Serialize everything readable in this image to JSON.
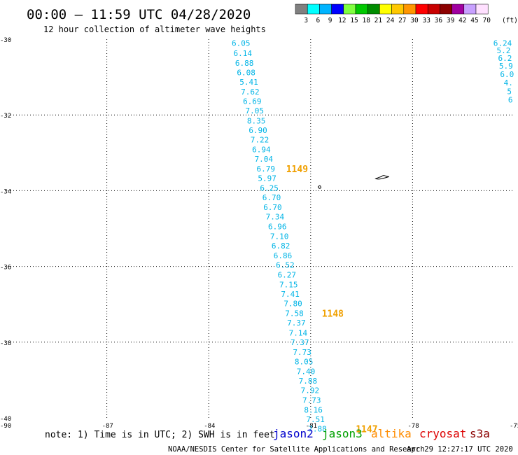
{
  "header": {
    "title": "00:00 – 11:59 UTC 04/28/2020",
    "subtitle": "12 hour collection of altimeter wave heights"
  },
  "colorbar": {
    "labels": [
      "3",
      "6",
      "9",
      "12",
      "15",
      "18",
      "21",
      "24",
      "27",
      "30",
      "33",
      "36",
      "39",
      "42",
      "45",
      "70"
    ],
    "unit": "(ft)",
    "colors": [
      "#808080",
      "#00ffff",
      "#00b4ff",
      "#0000ff",
      "#80ff40",
      "#00c800",
      "#008c00",
      "#ffff00",
      "#ffc800",
      "#ff9600",
      "#ff0000",
      "#c80000",
      "#8c0000",
      "#a000a0",
      "#c8a0ff",
      "#ffe0ff"
    ]
  },
  "footer": {
    "note": "note: 1) Time is in UTC; 2) SWH is in feet",
    "credit": "NOAA/NESDIS Center for Satellite Applications and Research",
    "timestamp": "Apr 29 12:27:17 UTC 2020",
    "legend": [
      {
        "label": "jason2",
        "color": "#0000cc"
      },
      {
        "label": "jason3",
        "color": "#00a000"
      },
      {
        "label": "altika",
        "color": "#ff8c00"
      },
      {
        "label": "cryosat",
        "color": "#dd0000"
      },
      {
        "label": "s3a",
        "color": "#8b0000"
      }
    ]
  },
  "chart_data": {
    "type": "scatter",
    "x_ticks": [
      -90,
      -87,
      -84,
      -81,
      -78,
      -75
    ],
    "y_ticks": [
      -30,
      -32,
      -34,
      -36,
      -38,
      -40
    ],
    "xlim": [
      -90,
      -75
    ],
    "ylim": [
      -40,
      -30
    ],
    "grid": true,
    "series": [
      {
        "name": "altika",
        "color": "#00b4e6",
        "points": [
          {
            "lon": -83.05,
            "lat": -30.1,
            "value": "6.05"
          },
          {
            "lon": -83.0,
            "lat": -30.37,
            "value": "6.14"
          },
          {
            "lon": -82.95,
            "lat": -30.63,
            "value": "6.88"
          },
          {
            "lon": -82.9,
            "lat": -30.88,
            "value": "6.08"
          },
          {
            "lon": -82.82,
            "lat": -31.13,
            "value": "5.41"
          },
          {
            "lon": -82.78,
            "lat": -31.39,
            "value": "7.62"
          },
          {
            "lon": -82.72,
            "lat": -31.64,
            "value": "6.69"
          },
          {
            "lon": -82.65,
            "lat": -31.89,
            "value": "7.05"
          },
          {
            "lon": -82.6,
            "lat": -32.15,
            "value": "8.35"
          },
          {
            "lon": -82.55,
            "lat": -32.4,
            "value": "6.90"
          },
          {
            "lon": -82.5,
            "lat": -32.65,
            "value": "7.22"
          },
          {
            "lon": -82.45,
            "lat": -32.91,
            "value": "6.94"
          },
          {
            "lon": -82.38,
            "lat": -33.16,
            "value": "7.04"
          },
          {
            "lon": -82.32,
            "lat": -33.42,
            "value": "6.79"
          },
          {
            "lon": -82.28,
            "lat": -33.67,
            "value": "5.97"
          },
          {
            "lon": -82.22,
            "lat": -33.93,
            "value": "6.25"
          },
          {
            "lon": -82.15,
            "lat": -34.18,
            "value": "6.70"
          },
          {
            "lon": -82.12,
            "lat": -34.44,
            "value": "6.70"
          },
          {
            "lon": -82.05,
            "lat": -34.69,
            "value": "7.34"
          },
          {
            "lon": -81.98,
            "lat": -34.94,
            "value": "6.96"
          },
          {
            "lon": -81.92,
            "lat": -35.2,
            "value": "7.10"
          },
          {
            "lon": -81.88,
            "lat": -35.45,
            "value": "6.82"
          },
          {
            "lon": -81.82,
            "lat": -35.71,
            "value": "6.86"
          },
          {
            "lon": -81.75,
            "lat": -35.96,
            "value": "6.52"
          },
          {
            "lon": -81.7,
            "lat": -36.22,
            "value": "6.27"
          },
          {
            "lon": -81.65,
            "lat": -36.48,
            "value": "7.15"
          },
          {
            "lon": -81.6,
            "lat": -36.73,
            "value": "7.41"
          },
          {
            "lon": -81.52,
            "lat": -36.98,
            "value": "7.80"
          },
          {
            "lon": -81.48,
            "lat": -37.24,
            "value": "7.58"
          },
          {
            "lon": -81.42,
            "lat": -37.49,
            "value": "7.37"
          },
          {
            "lon": -81.37,
            "lat": -37.75,
            "value": "7.14"
          },
          {
            "lon": -81.32,
            "lat": -38.0,
            "value": "7.37"
          },
          {
            "lon": -81.25,
            "lat": -38.26,
            "value": "7.73"
          },
          {
            "lon": -81.2,
            "lat": -38.51,
            "value": "8.05"
          },
          {
            "lon": -81.14,
            "lat": -38.77,
            "value": "7.40"
          },
          {
            "lon": -81.08,
            "lat": -39.02,
            "value": "7.88"
          },
          {
            "lon": -81.02,
            "lat": -39.27,
            "value": "7.92"
          },
          {
            "lon": -80.97,
            "lat": -39.53,
            "value": "7.73"
          },
          {
            "lon": -80.92,
            "lat": -39.79,
            "value": "8.16"
          },
          {
            "lon": -80.86,
            "lat": -40.04,
            "value": "7.51"
          },
          {
            "lon": -80.8,
            "lat": -40.29,
            "value": "7.88"
          }
        ]
      },
      {
        "name": "altika (second pass, clipped)",
        "color": "#00b4e6",
        "points": [
          {
            "lon": -75.35,
            "lat": -30.1,
            "value": "6.24"
          },
          {
            "lon": -75.32,
            "lat": -30.3,
            "value": "5.2"
          },
          {
            "lon": -75.28,
            "lat": -30.5,
            "value": "6.2"
          },
          {
            "lon": -75.25,
            "lat": -30.7,
            "value": "5.9"
          },
          {
            "lon": -75.22,
            "lat": -30.92,
            "value": "6.0"
          },
          {
            "lon": -75.18,
            "lat": -31.15,
            "value": "4."
          },
          {
            "lon": -75.15,
            "lat": -31.38,
            "value": "5"
          },
          {
            "lon": -75.12,
            "lat": -31.6,
            "value": "6"
          }
        ]
      }
    ],
    "annotations": [
      {
        "text": "1149",
        "lon": -81.4,
        "lat": -33.42,
        "color": "#f0a000"
      },
      {
        "text": "1148",
        "lon": -80.35,
        "lat": -37.24,
        "color": "#f0a000"
      },
      {
        "text": "1147",
        "lon": -79.35,
        "lat": -40.29,
        "color": "#f0a000"
      }
    ],
    "islands": [
      {
        "name": "small-island",
        "lon": -80.78,
        "lat": -33.9
      },
      {
        "name": "large-island",
        "lon": -78.88,
        "lat": -33.63
      }
    ]
  }
}
